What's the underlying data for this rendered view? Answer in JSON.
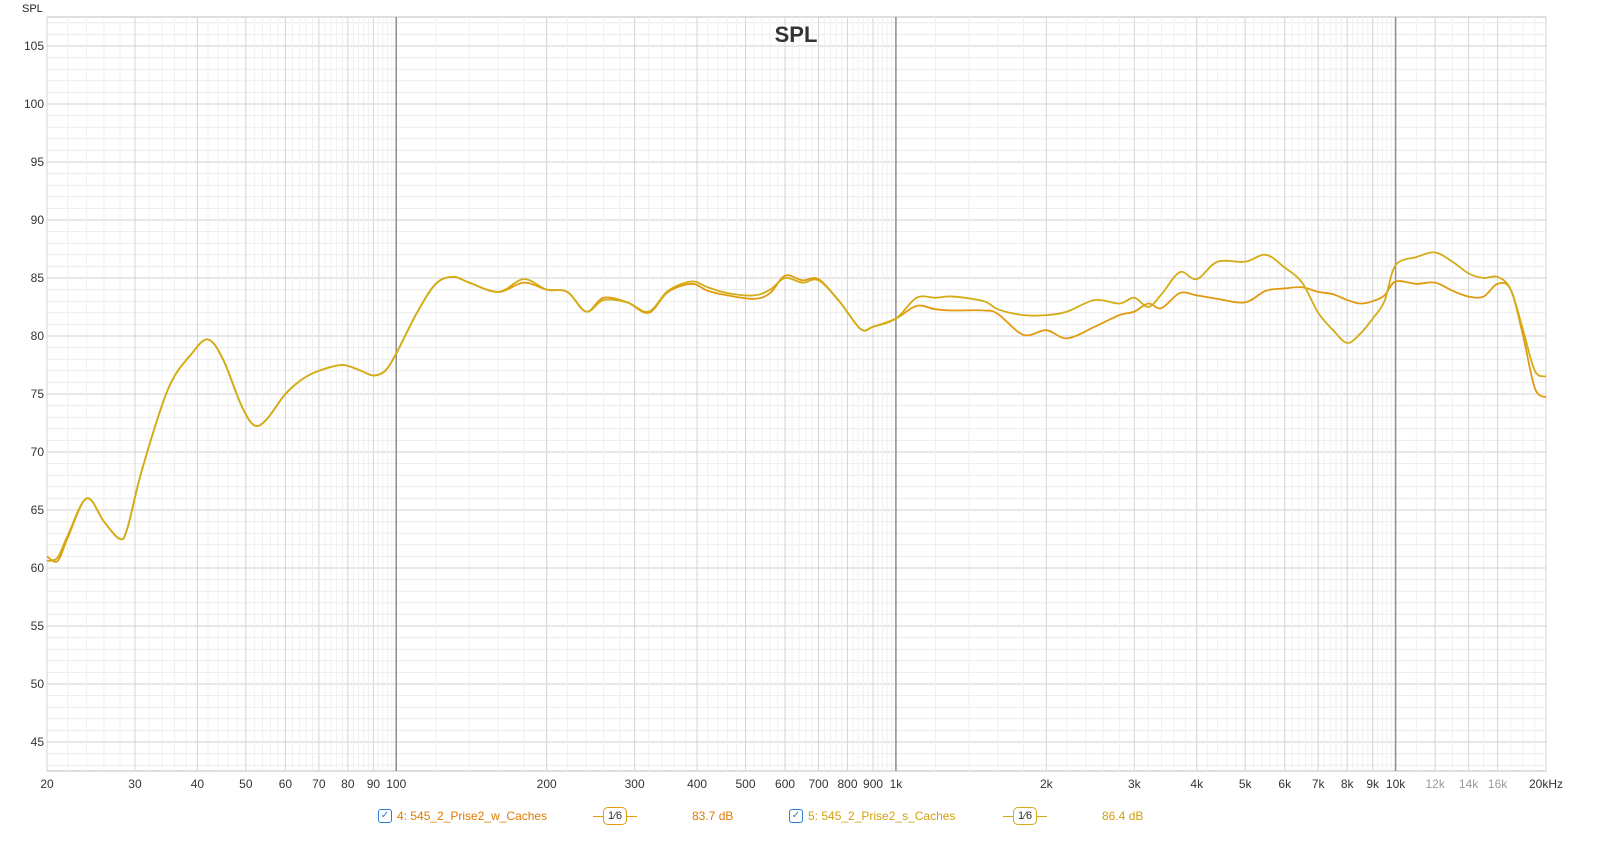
{
  "colors": {
    "series1": "#e29a10",
    "series2": "#d3ad16",
    "legend_text": "#e07b00",
    "checkbox": "#2a7fd4",
    "grid_major": "#9a9a9a",
    "grid_minor": "#e2e2e2",
    "grid_mid": "#cfcfcf"
  },
  "chart_data": {
    "type": "line",
    "title": "SPL",
    "ylabel": "SPL",
    "xscale": "log",
    "xlim": [
      20,
      20000
    ],
    "ylim": [
      42.5,
      107.5
    ],
    "grid": true,
    "y_ticks": [
      45,
      50,
      55,
      60,
      65,
      70,
      75,
      80,
      85,
      90,
      95,
      100,
      105
    ],
    "x_ticks": [
      {
        "v": 20,
        "label": "20"
      },
      {
        "v": 30,
        "label": "30"
      },
      {
        "v": 40,
        "label": "40"
      },
      {
        "v": 50,
        "label": "50"
      },
      {
        "v": 60,
        "label": "60"
      },
      {
        "v": 70,
        "label": "70"
      },
      {
        "v": 80,
        "label": "80"
      },
      {
        "v": 90,
        "label": "90"
      },
      {
        "v": 100,
        "label": "100"
      },
      {
        "v": 200,
        "label": "200"
      },
      {
        "v": 300,
        "label": "300"
      },
      {
        "v": 400,
        "label": "400"
      },
      {
        "v": 500,
        "label": "500"
      },
      {
        "v": 600,
        "label": "600"
      },
      {
        "v": 700,
        "label": "700"
      },
      {
        "v": 800,
        "label": "800"
      },
      {
        "v": 900,
        "label": "900"
      },
      {
        "v": 1000,
        "label": "1k"
      },
      {
        "v": 2000,
        "label": "2k"
      },
      {
        "v": 3000,
        "label": "3k"
      },
      {
        "v": 4000,
        "label": "4k"
      },
      {
        "v": 5000,
        "label": "5k"
      },
      {
        "v": 6000,
        "label": "6k"
      },
      {
        "v": 7000,
        "label": "7k"
      },
      {
        "v": 8000,
        "label": "8k"
      },
      {
        "v": 9000,
        "label": "9k"
      },
      {
        "v": 10000,
        "label": "10k"
      },
      {
        "v": 12000,
        "label": "12k",
        "muted": true
      },
      {
        "v": 14000,
        "label": "14k",
        "muted": true
      },
      {
        "v": 16000,
        "label": "16k",
        "muted": true
      },
      {
        "v": 20000,
        "label": "20kHz"
      }
    ],
    "series": [
      {
        "name": "4: 545_2_Prise2_w_Caches",
        "color": "#e29a10",
        "x": [
          20,
          21,
          22,
          24,
          26,
          28,
          29,
          31,
          35,
          39,
          42,
          45,
          49,
          52,
          55,
          60,
          65,
          70,
          78,
          85,
          90,
          95,
          100,
          110,
          120,
          130,
          140,
          160,
          180,
          200,
          220,
          240,
          260,
          290,
          320,
          350,
          390,
          420,
          460,
          520,
          560,
          600,
          650,
          700,
          770,
          850,
          900,
          1000,
          1100,
          1200,
          1300,
          1500,
          1600,
          1800,
          2000,
          2200,
          2500,
          2800,
          3000,
          3200,
          3400,
          3700,
          4000,
          4400,
          5000,
          5500,
          6000,
          6500,
          7000,
          7500,
          8000,
          8500,
          9000,
          9500,
          10000,
          11000,
          12000,
          13000,
          14000,
          15000,
          16000,
          17000,
          18000,
          19000,
          20000
        ],
        "y": [
          61.0,
          60.6,
          62.6,
          66.0,
          64.0,
          62.5,
          63.5,
          68.5,
          75.5,
          78.5,
          79.7,
          78.0,
          74.0,
          72.3,
          72.8,
          75.0,
          76.3,
          77.0,
          77.5,
          77.0,
          76.6,
          77.0,
          78.5,
          82.0,
          84.5,
          85.1,
          84.6,
          83.8,
          84.6,
          84.0,
          83.8,
          82.1,
          83.3,
          82.9,
          82.0,
          83.8,
          84.5,
          83.9,
          83.5,
          83.2,
          83.7,
          85.2,
          84.8,
          84.9,
          83.0,
          80.6,
          80.8,
          81.5,
          82.6,
          82.3,
          82.2,
          82.2,
          81.9,
          80.1,
          80.5,
          79.8,
          80.8,
          81.8,
          82.1,
          82.8,
          82.4,
          83.7,
          83.5,
          83.2,
          82.9,
          83.9,
          84.1,
          84.2,
          83.8,
          83.6,
          83.1,
          82.8,
          83.0,
          83.5,
          84.7,
          84.5,
          84.6,
          83.9,
          83.4,
          83.4,
          84.5,
          84.0,
          80.0,
          75.5,
          74.7
        ]
      },
      {
        "name": "5: 545_2_Prise2_s_Caches",
        "color": "#d3ad16",
        "x": [
          20,
          21,
          22,
          24,
          26,
          28,
          29,
          31,
          35,
          39,
          42,
          45,
          49,
          52,
          55,
          60,
          65,
          70,
          78,
          85,
          90,
          95,
          100,
          110,
          120,
          130,
          140,
          160,
          180,
          200,
          220,
          240,
          260,
          290,
          320,
          350,
          390,
          420,
          460,
          520,
          560,
          600,
          650,
          700,
          770,
          850,
          900,
          1000,
          1100,
          1200,
          1300,
          1500,
          1600,
          1800,
          2000,
          2200,
          2500,
          2800,
          3000,
          3200,
          3400,
          3700,
          4000,
          4400,
          5000,
          5500,
          6000,
          6500,
          7000,
          7500,
          8000,
          8500,
          9000,
          9500,
          10000,
          11000,
          12000,
          13000,
          14000,
          15000,
          16000,
          17000,
          18000,
          19000,
          20000
        ],
        "y": [
          60.6,
          60.9,
          62.8,
          66.0,
          64.0,
          62.5,
          63.5,
          68.5,
          75.5,
          78.5,
          79.7,
          78.0,
          74.0,
          72.3,
          72.8,
          75.0,
          76.3,
          77.0,
          77.5,
          77.0,
          76.6,
          77.0,
          78.5,
          82.0,
          84.5,
          85.1,
          84.6,
          83.8,
          84.9,
          84.0,
          83.8,
          82.1,
          83.1,
          82.9,
          82.1,
          83.9,
          84.7,
          84.2,
          83.7,
          83.5,
          84.0,
          85.0,
          84.6,
          84.8,
          83.0,
          80.6,
          80.8,
          81.5,
          83.3,
          83.3,
          83.4,
          83.0,
          82.3,
          81.8,
          81.8,
          82.1,
          83.1,
          82.8,
          83.3,
          82.5,
          83.6,
          85.5,
          84.9,
          86.4,
          86.4,
          87.0,
          85.9,
          84.6,
          82.0,
          80.5,
          79.4,
          80.2,
          81.5,
          83.0,
          86.1,
          86.8,
          87.2,
          86.4,
          85.4,
          85.0,
          85.1,
          84.0,
          80.5,
          77.0,
          76.5
        ]
      }
    ]
  },
  "legend": [
    {
      "name": "4: 545_2_Prise2_w_Caches",
      "smoothing": "1⁄6",
      "level": "83.7 dB",
      "color": "#e29a10"
    },
    {
      "name": "5: 545_2_Prise2_s_Caches",
      "smoothing": "1⁄6",
      "level": "86.4 dB",
      "color": "#d3ad16"
    }
  ]
}
